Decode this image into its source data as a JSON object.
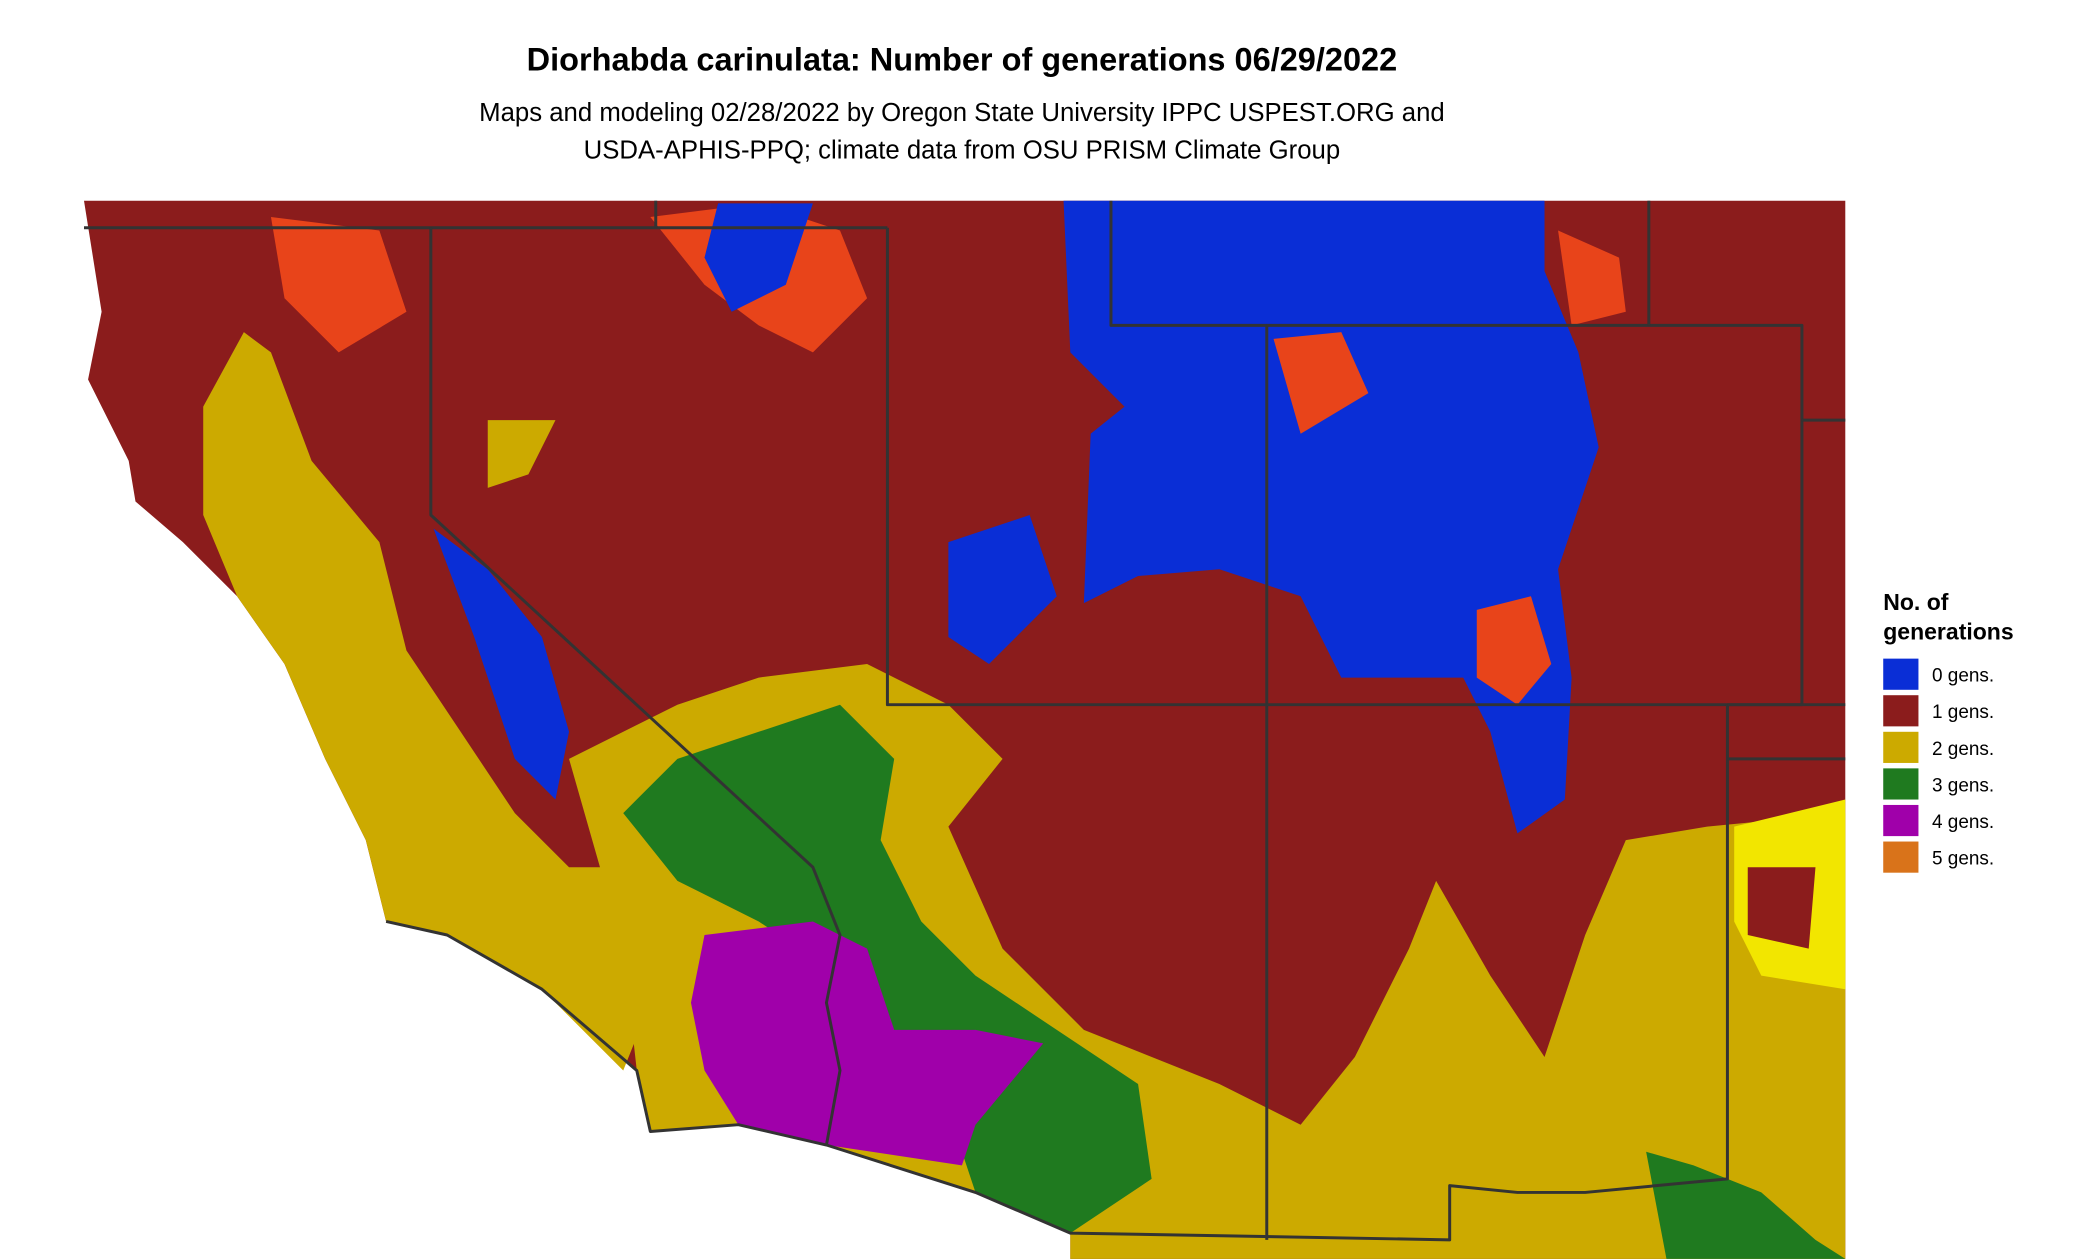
{
  "title": "Diorhabda carinulata: Number of generations 06/29/2022",
  "subtitle": [
    "Maps and modeling 02/28/2022 by Oregon State University IPPC USPEST.ORG and",
    "USDA-APHIS-PPQ; climate data from OSU PRISM Climate Group"
  ],
  "legend": {
    "title": [
      "No. of",
      "generations"
    ],
    "items": [
      {
        "label": "0 gens.",
        "color": "#0a2ed6"
      },
      {
        "label": "1 gens.",
        "color": "#8b1c1c"
      },
      {
        "label": "2 gens.",
        "color": "#ccaa00"
      },
      {
        "label": "3 gens.",
        "color": "#1f7a1f"
      },
      {
        "label": "4 gens.",
        "color": "#a000aa"
      },
      {
        "label": "5 gens.",
        "color": "#d9731a"
      }
    ]
  }
}
